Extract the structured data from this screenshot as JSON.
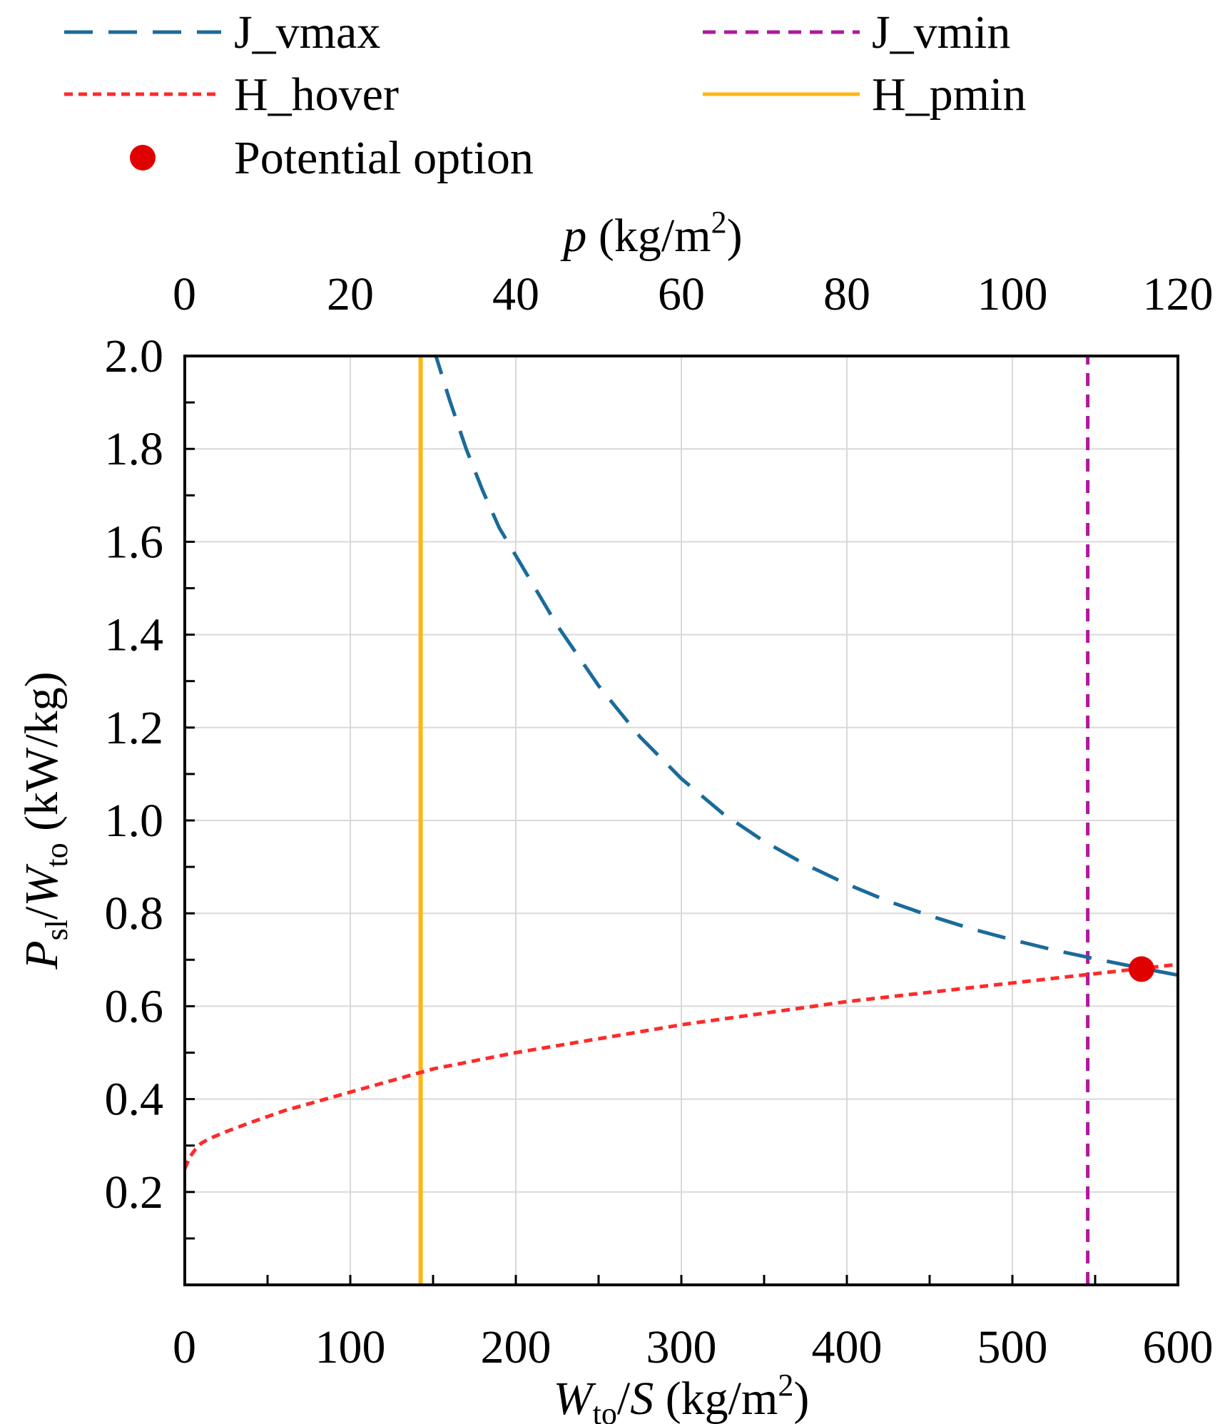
{
  "chart_data": {
    "type": "line",
    "x_axis": {
      "label_main": "W",
      "label_sub": "to",
      "label_rest": "/S (kg/m",
      "label_sup": "2",
      "label_close": ")",
      "range": [
        0,
        600
      ],
      "ticks": [
        0,
        100,
        200,
        300,
        400,
        500,
        600
      ],
      "tick_labels": [
        "0",
        "100",
        "200",
        "300",
        "400",
        "500",
        "600"
      ]
    },
    "top_axis": {
      "label_main": "p",
      "label_rest": " (kg/m",
      "label_sup": "2",
      "label_close": ")",
      "range": [
        0,
        120
      ],
      "ticks": [
        0,
        20,
        40,
        60,
        80,
        100,
        120
      ],
      "tick_labels": [
        "0",
        "20",
        "40",
        "60",
        "80",
        "100",
        "120"
      ]
    },
    "y_axis": {
      "label_main1": "P",
      "label_sub1": "sl",
      "label_mid": "/",
      "label_main2": "W",
      "label_sub2": "to",
      "label_rest": " (kW/kg)",
      "range": [
        0,
        2.0
      ],
      "ticks": [
        0.2,
        0.4,
        0.6,
        0.8,
        1.0,
        1.2,
        1.4,
        1.6,
        1.8,
        2.0
      ],
      "tick_labels": [
        "0.2",
        "0.4",
        "0.6",
        "0.8",
        "1.0",
        "1.2",
        "1.4",
        "1.6",
        "1.8",
        "2.0"
      ]
    },
    "grid": true,
    "series": [
      {
        "name": "J_vmax",
        "style": "long-dash",
        "color": "#1a6b9a",
        "x": [
          150,
          160,
          170,
          180,
          190,
          200,
          225,
          250,
          275,
          300,
          325,
          350,
          375,
          400,
          425,
          450,
          475,
          500,
          525,
          550,
          575,
          600
        ],
        "y": [
          2.02,
          1.905,
          1.8,
          1.71,
          1.63,
          1.57,
          1.42,
          1.29,
          1.18,
          1.09,
          1.015,
          0.955,
          0.905,
          0.863,
          0.826,
          0.795,
          0.767,
          0.743,
          0.721,
          0.702,
          0.684,
          0.667
        ]
      },
      {
        "name": "H_hover",
        "style": "short-dash",
        "color": "#ff2a2a",
        "x": [
          0,
          3,
          6,
          10,
          15,
          25,
          40,
          60,
          80,
          100,
          125,
          150,
          200,
          250,
          300,
          350,
          400,
          450,
          500,
          550,
          600
        ],
        "y": [
          0.25,
          0.275,
          0.29,
          0.305,
          0.315,
          0.33,
          0.35,
          0.375,
          0.395,
          0.415,
          0.44,
          0.465,
          0.5,
          0.53,
          0.56,
          0.585,
          0.61,
          0.63,
          0.65,
          0.67,
          0.69
        ]
      },
      {
        "name": "H_pmin",
        "style": "solid",
        "color": "#ffb612",
        "x": [
          142.5,
          142.5
        ],
        "y": [
          0,
          2.0
        ]
      },
      {
        "name": "J_vmin",
        "style": "dash",
        "color": "#b0189e",
        "x": [
          545.5,
          545.5
        ],
        "y": [
          0,
          2.0
        ]
      }
    ],
    "points": [
      {
        "name": "Potential option",
        "x": 578,
        "y": 0.68,
        "color": "#e00000"
      }
    ],
    "legend": {
      "position": "top",
      "entries": [
        "J_vmax",
        "J_vmin",
        "H_hover",
        "H_pmin",
        "Potential option"
      ]
    }
  }
}
